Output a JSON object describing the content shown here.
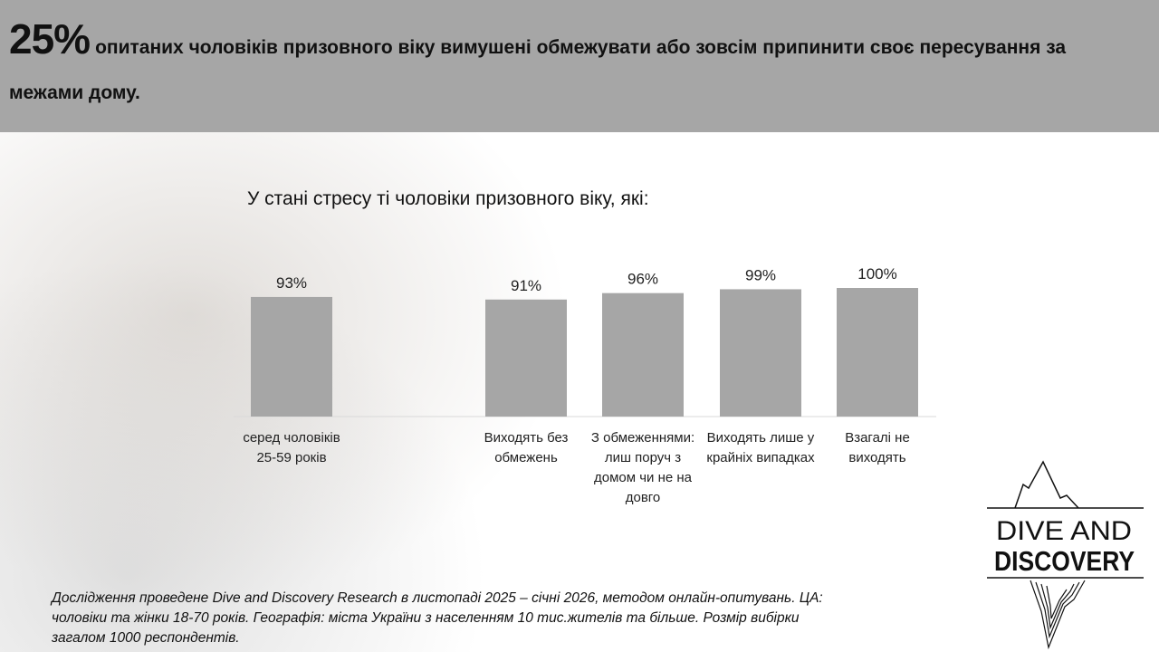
{
  "header": {
    "highlight": "25%",
    "text": "опитаних чоловіків призовного віку вимушені обмежувати або зовсім припинити своє пересування за межами дому."
  },
  "chart_data": {
    "type": "bar",
    "title": "У стані стресу ті чоловіки призовного віку, які:",
    "categories": [
      "серед чоловіків 25-59 років",
      "Виходять без обмежень",
      "З обмеженнями: лиш поруч з домом чи не на довго",
      "Виходять лише у крайніх випадках",
      "Взагалі не виходять"
    ],
    "values": [
      93,
      91,
      96,
      99,
      100
    ],
    "labels": [
      "93%",
      "91%",
      "96%",
      "99%",
      "100%"
    ],
    "ylim": [
      0,
      100
    ],
    "grid": false,
    "bar_color": "#a6a6a6"
  },
  "footnote": "Дослідження проведене Dive and Discovery Research в листопаді 2025 – січні 2026, методом онлайн-опитувань. ЦА: чоловіки та жінки 18-70 років. Географія: міста України з населенням 10 тис.жителів та більше. Розмір вибірки загалом 1000 респондентів.",
  "logo": {
    "line1": "DIVE AND",
    "line2": "DISCOVERY"
  }
}
